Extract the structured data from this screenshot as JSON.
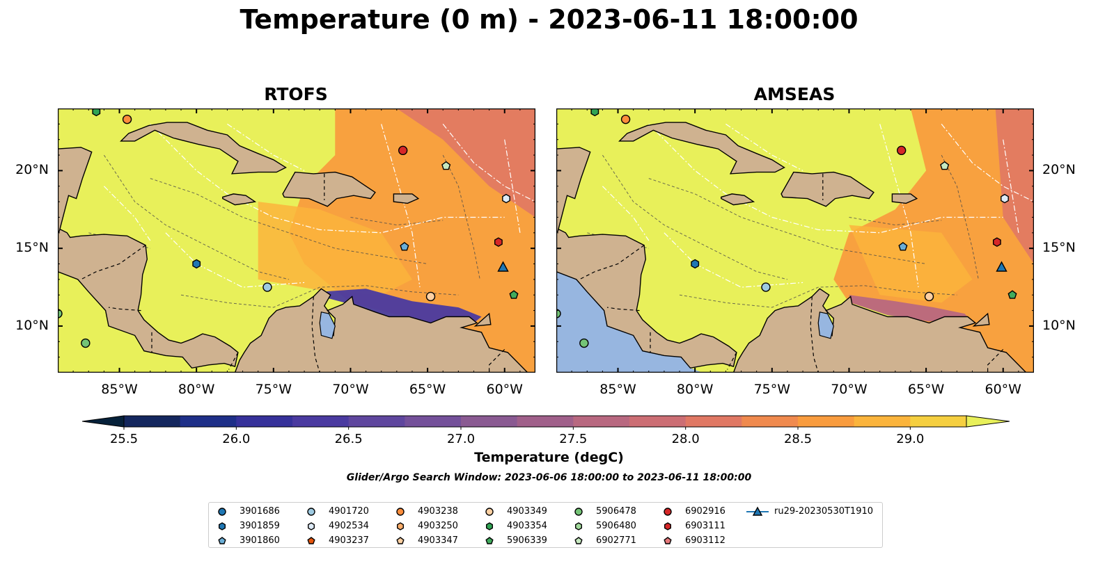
{
  "title": "Temperature (0 m) - 2023-06-11 18:00:00",
  "panels": [
    {
      "title": "RTOFS"
    },
    {
      "title": "AMSEAS"
    }
  ],
  "axes": {
    "lon_ticks": [
      "85°W",
      "80°W",
      "75°W",
      "70°W",
      "65°W",
      "60°W"
    ],
    "lon_values": [
      -85,
      -80,
      -75,
      -70,
      -65,
      -60
    ],
    "lat_ticks": [
      "20°N",
      "15°N",
      "10°N"
    ],
    "lat_values": [
      20,
      15,
      10
    ],
    "lon_range": [
      -89,
      -58
    ],
    "lat_range": [
      7,
      24
    ]
  },
  "colorbar": {
    "label": "Temperature (degC)",
    "ticks": [
      "25.5",
      "26.0",
      "26.5",
      "27.0",
      "27.5",
      "28.0",
      "28.5",
      "29.0"
    ],
    "tick_values": [
      25.5,
      26.0,
      26.5,
      27.0,
      27.5,
      28.0,
      28.5,
      29.0
    ],
    "range": [
      25.5,
      29.25
    ],
    "extend": "both",
    "colors": [
      "#06213a",
      "#14275e",
      "#1e2f88",
      "#36319a",
      "#4a3aa0",
      "#5f469e",
      "#74509a",
      "#8a5a92",
      "#a0608a",
      "#b86880",
      "#cc6e74",
      "#e07864",
      "#f08a4e",
      "#f99c3e",
      "#fbb43c",
      "#f5cf40",
      "#e8f05a"
    ]
  },
  "search_window": "Glider/Argo Search Window: 2023-06-06 18:00:00 to 2023-06-11 18:00:00",
  "colors": {
    "land": "#cfb290",
    "water_fallback": "#97b6e0"
  },
  "legend": [
    {
      "label": "3901686",
      "shape": "circle",
      "color": "#1f77b4"
    },
    {
      "label": "3901859",
      "shape": "hexagon",
      "color": "#1f77b4"
    },
    {
      "label": "3901860",
      "shape": "pentagon",
      "color": "#6baed6"
    },
    {
      "label": "4901720",
      "shape": "circle",
      "color": "#9ecae1"
    },
    {
      "label": "4902534",
      "shape": "hexagon",
      "color": "#deebf7"
    },
    {
      "label": "4903237",
      "shape": "pentagon",
      "color": "#e6550d"
    },
    {
      "label": "4903238",
      "shape": "circle",
      "color": "#fd8d3c"
    },
    {
      "label": "4903250",
      "shape": "hexagon",
      "color": "#fdae6b"
    },
    {
      "label": "4903347",
      "shape": "pentagon",
      "color": "#fdd0a2"
    },
    {
      "label": "4903349",
      "shape": "circle",
      "color": "#fdd0a2"
    },
    {
      "label": "4903354",
      "shape": "hexagon",
      "color": "#31a354"
    },
    {
      "label": "5906339",
      "shape": "pentagon",
      "color": "#41ab5d"
    },
    {
      "label": "5906478",
      "shape": "circle",
      "color": "#74c476"
    },
    {
      "label": "5906480",
      "shape": "hexagon",
      "color": "#a1d99b"
    },
    {
      "label": "6902771",
      "shape": "pentagon",
      "color": "#c7e9c0"
    },
    {
      "label": "6902916",
      "shape": "circle",
      "color": "#d62728"
    },
    {
      "label": "6903111",
      "shape": "hexagon",
      "color": "#d62728"
    },
    {
      "label": "6903112",
      "shape": "pentagon",
      "color": "#e6787a"
    },
    {
      "label": "ru29-20230530T1910",
      "shape": "triangle-line",
      "color": "#1f77b4"
    }
  ],
  "markers": [
    {
      "id": "3901860",
      "lon": -66.5,
      "lat": 15.1
    },
    {
      "id": "3901859",
      "lon": -80.0,
      "lat": 14.0
    },
    {
      "id": "4901720",
      "lon": -75.4,
      "lat": 12.5
    },
    {
      "id": "4902534",
      "lon": -59.9,
      "lat": 18.2
    },
    {
      "id": "4903238",
      "lon": -84.5,
      "lat": 23.3
    },
    {
      "id": "4903349",
      "lon": -64.8,
      "lat": 11.9
    },
    {
      "id": "5906339",
      "lon": -59.4,
      "lat": 12.0
    },
    {
      "id": "5906478",
      "lon": -87.2,
      "lat": 8.9
    },
    {
      "id": "5906478",
      "lon": -89.0,
      "lat": 10.8
    },
    {
      "id": "4903354",
      "lon": -86.5,
      "lat": 23.8
    },
    {
      "id": "6902771",
      "lon": -63.8,
      "lat": 20.3
    },
    {
      "id": "6902916",
      "lon": -66.6,
      "lat": 21.3
    },
    {
      "id": "6903111",
      "lon": -60.4,
      "lat": 15.4
    },
    {
      "id": "ru29-20230530T1910",
      "lon": -60.1,
      "lat": 13.8
    }
  ]
}
